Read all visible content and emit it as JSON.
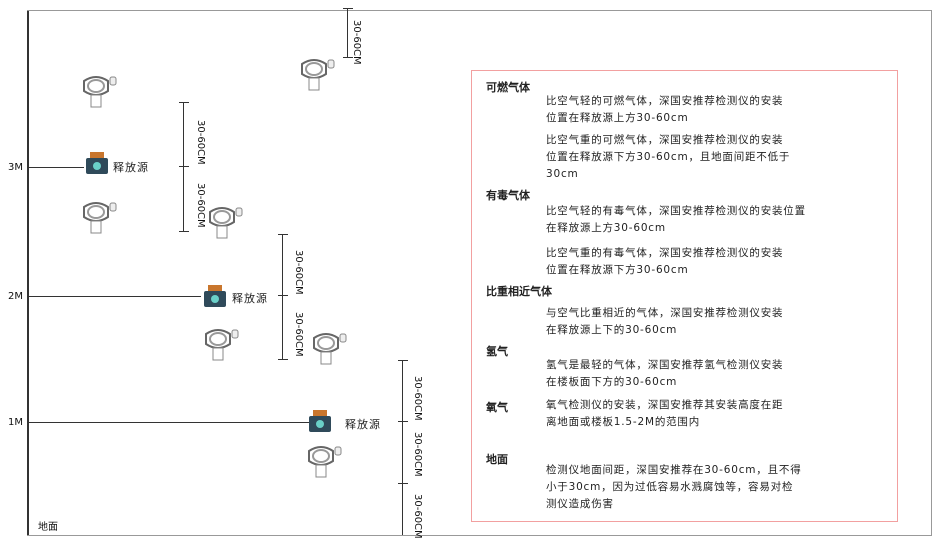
{
  "levels": {
    "m3": "3M",
    "m2": "2M",
    "m1": "1M",
    "ground": "地面"
  },
  "source_label": "释放源",
  "dimension_label": "30-60CM",
  "colors": {
    "panel_border": "#f2a0a0",
    "source_body": "#2f4a5a",
    "source_cap": "#c9762d",
    "line": "#333333"
  },
  "panel": {
    "combustible": {
      "title": "可燃气体",
      "light": [
        "比空气轻的可燃气体，深国安推荐检测仪的安装",
        "位置在释放源上方30-60cm"
      ],
      "heavy": [
        "比空气重的可燃气体，深国安推荐检测仪的安装",
        "位置在释放源下方30-60cm，且地面间距不低于",
        "30cm"
      ]
    },
    "toxic": {
      "title": "有毒气体",
      "light": [
        "比空气轻的有毒气体，深国安推荐检测仪的安装位置",
        "在释放源上方30-60cm"
      ],
      "heavy": [
        "比空气重的有毒气体，深国安推荐检测仪的安装",
        "位置在释放源下方30-60cm"
      ]
    },
    "similar": {
      "title": "比重相近气体",
      "text": [
        "与空气比重相近的气体，深国安推荐检测仪安装",
        "在释放源上下的30-60cm"
      ]
    },
    "hydrogen": {
      "title": "氢气",
      "text": [
        "氢气是最轻的气体，深国安推荐氢气检测仪安装",
        "在楼板面下方的30-60cm"
      ]
    },
    "oxygen": {
      "title": "氧气",
      "text": [
        "氧气检测仪的安装，深国安推荐其安装高度在距",
        "离地面或楼板1.5-2M的范围内"
      ]
    },
    "ground": {
      "title": "地面",
      "text": [
        "检测仪地面间距，深国安推荐在30-60cm，且不得",
        "小于30cm，因为过低容易水溅腐蚀等，容易对检",
        "测仪造成伤害"
      ]
    }
  }
}
